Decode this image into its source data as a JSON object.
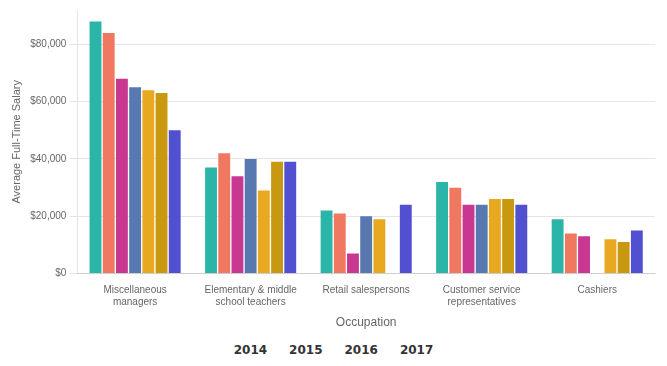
{
  "chart_data": {
    "type": "bar",
    "xlabel": "Occupation",
    "ylabel": "Average Full-Time Salary",
    "categories": [
      "Miscellaneous\nmanagers",
      "Elementary & middle\nschool teachers",
      "Retail salespersons",
      "Customer service\nrepresentatives",
      "Cashiers"
    ],
    "series": [
      {
        "color": "#2ab5a8",
        "values": [
          88000,
          37000,
          22000,
          32000,
          19000
        ]
      },
      {
        "color": "#f07860",
        "values": [
          84000,
          42000,
          21000,
          30000,
          14000
        ]
      },
      {
        "color": "#c83890",
        "values": [
          68000,
          34000,
          7000,
          24000,
          13000
        ]
      },
      {
        "color": "#5878b0",
        "values": [
          65000,
          40000,
          20000,
          24000,
          0
        ]
      },
      {
        "color": "#e8a820",
        "values": [
          64000,
          29000,
          19000,
          26000,
          12000
        ]
      },
      {
        "color": "#c89810",
        "values": [
          63000,
          39000,
          0,
          26000,
          11000
        ]
      },
      {
        "color": "#5050d0",
        "values": [
          50000,
          39000,
          24000,
          24000,
          15000
        ]
      }
    ],
    "ylim": [
      0,
      92000
    ],
    "yticks": [
      {
        "value": 0,
        "label": "$0"
      },
      {
        "value": 20000,
        "label": "$20,000"
      },
      {
        "value": 40000,
        "label": "$40,000"
      },
      {
        "value": 60000,
        "label": "$60,000"
      },
      {
        "value": 80000,
        "label": "$80,000"
      }
    ],
    "grid": true,
    "annotations": [
      "2014",
      "2015",
      "2016",
      "2017"
    ]
  }
}
